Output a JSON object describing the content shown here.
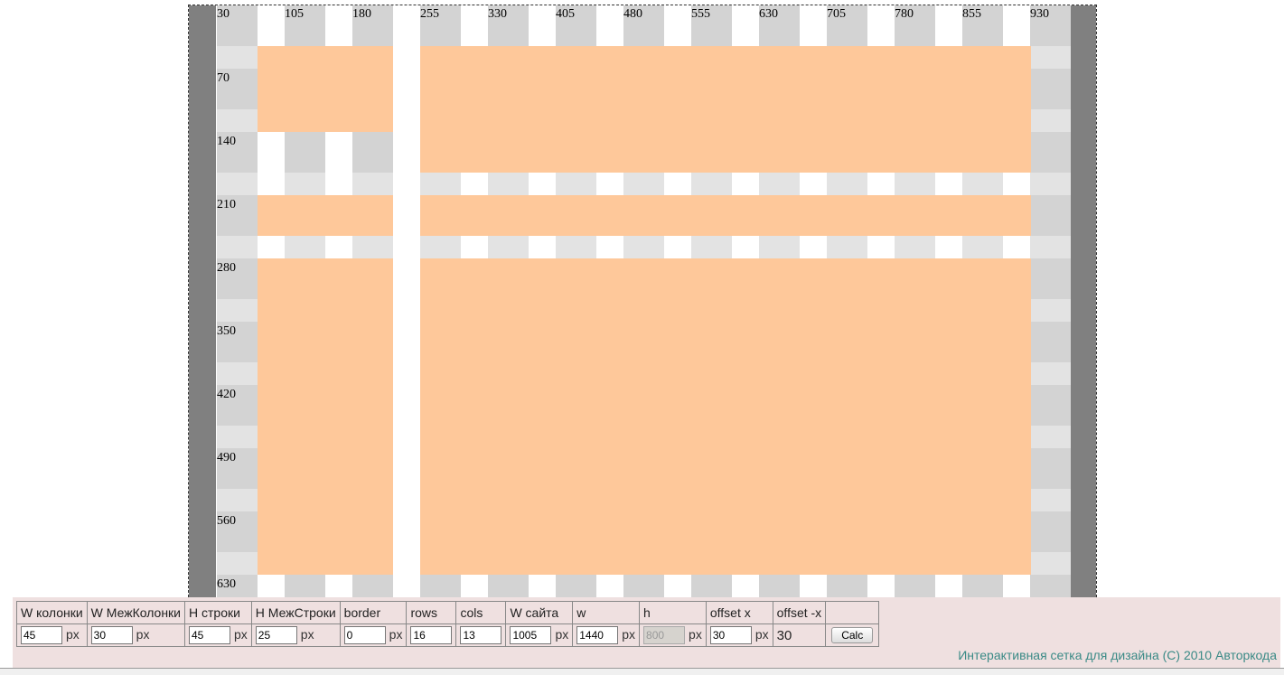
{
  "grid": {
    "col_labels": [
      "30",
      "105",
      "180",
      "255",
      "330",
      "405",
      "480",
      "555",
      "630",
      "705",
      "780",
      "855",
      "930"
    ],
    "row_labels": [
      "70",
      "140",
      "210",
      "280",
      "350",
      "420",
      "490",
      "560",
      "630"
    ],
    "colors": {
      "column": "#d3d3d3",
      "gap_row_column": "#e3e3e3",
      "block": "#fec89a",
      "margin": "#808080"
    }
  },
  "form": {
    "headers": [
      "W колонки",
      "W МежКолонки",
      "H строки",
      "H МежСтроки",
      "border",
      "rows",
      "cols",
      "W сайта",
      "w",
      "h",
      "offset x",
      "offset -x",
      ""
    ],
    "col_width": "45",
    "gutter_width": "30",
    "row_height": "45",
    "row_gutter": "25",
    "border": "0",
    "rows": "16",
    "cols": "13",
    "site_width": "1005",
    "w": "1440",
    "h": "800",
    "offset_x": "30",
    "offset_neg_x": "30",
    "unit": "px",
    "calc_label": "Calc"
  },
  "footer": {
    "copyright": "Интерактивная сетка для дизайна (C) 2010 Авторкода"
  }
}
